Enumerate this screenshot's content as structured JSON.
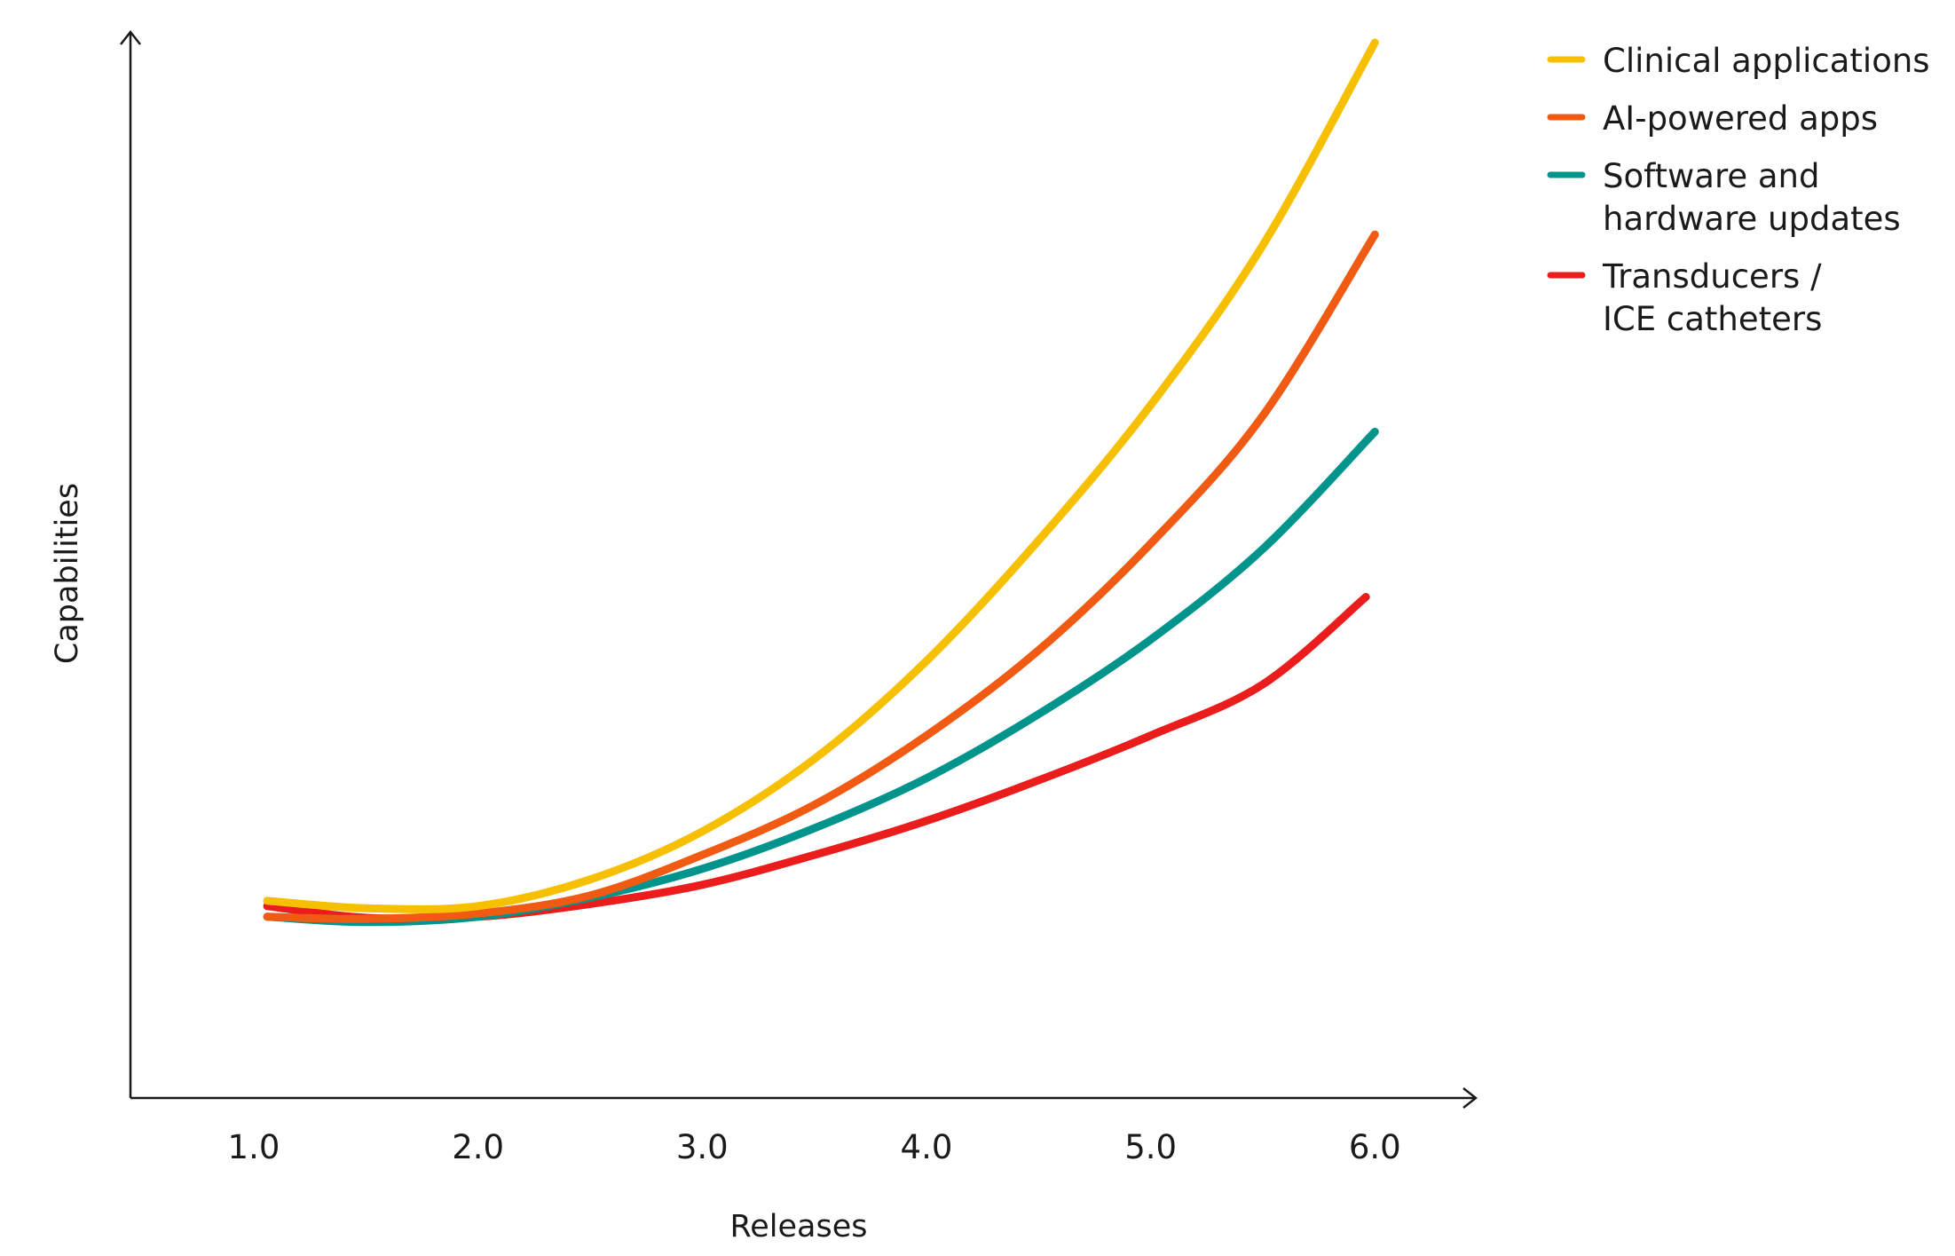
{
  "chart_data": {
    "type": "line",
    "title": "",
    "xlabel": "Releases",
    "ylabel": "Capabilities",
    "x": [
      1.0,
      1.5,
      2.0,
      2.5,
      3.0,
      3.5,
      4.0,
      4.5,
      5.0,
      5.5,
      6.0
    ],
    "x_tick_labels": [
      "1.0",
      "2.0",
      "3.0",
      "4.0",
      "5.0",
      "6.0"
    ],
    "x_tick_values": [
      1.0,
      2.0,
      3.0,
      4.0,
      5.0,
      6.0
    ],
    "xlim": [
      0.45,
      6.45
    ],
    "ylim": [
      0,
      100
    ],
    "grid": false,
    "legend_position": "top-right",
    "series": [
      {
        "name": "Clinical applications",
        "color": "#f6c000",
        "x": [
          1.06,
          1.5,
          2.0,
          2.5,
          3.0,
          3.5,
          4.0,
          4.5,
          5.0,
          5.5,
          6.0
        ],
        "values": [
          18.5,
          17.8,
          18.0,
          20.5,
          25.0,
          31.8,
          41.0,
          52.3,
          65.0,
          80.0,
          99.0
        ]
      },
      {
        "name": "AI-powered apps",
        "color": "#f05a12",
        "x": [
          1.06,
          1.5,
          2.0,
          2.5,
          3.0,
          3.5,
          4.0,
          4.5,
          5.0,
          5.5,
          6.0
        ],
        "values": [
          17.0,
          16.8,
          17.3,
          19.0,
          22.8,
          27.5,
          34.0,
          42.0,
          52.0,
          64.0,
          81.0
        ]
      },
      {
        "name": "Software and hardware updates",
        "color": "#00948c",
        "x": [
          1.06,
          1.5,
          2.0,
          2.5,
          3.0,
          3.5,
          4.0,
          4.5,
          5.0,
          5.5,
          6.0
        ],
        "values": [
          17.0,
          16.5,
          17.0,
          18.8,
          21.5,
          25.3,
          30.0,
          36.0,
          43.0,
          51.5,
          62.5
        ]
      },
      {
        "name": "Transducers / ICE catheters",
        "color": "#ea1c1c",
        "x": [
          1.06,
          1.5,
          2.0,
          2.5,
          3.0,
          3.5,
          4.0,
          4.5,
          5.0,
          5.5,
          5.96
        ],
        "values": [
          18.0,
          16.9,
          17.0,
          18.2,
          20.0,
          22.8,
          26.0,
          29.8,
          34.0,
          38.8,
          47.0
        ]
      }
    ],
    "legend": [
      {
        "lines": [
          "Clinical applications"
        ],
        "color": "#f6c000"
      },
      {
        "lines": [
          "AI-powered apps"
        ],
        "color": "#f05a12"
      },
      {
        "lines": [
          "Software and",
          "hardware updates"
        ],
        "color": "#00948c"
      },
      {
        "lines": [
          "Transducers /",
          "ICE catheters"
        ],
        "color": "#ea1c1c"
      }
    ]
  }
}
